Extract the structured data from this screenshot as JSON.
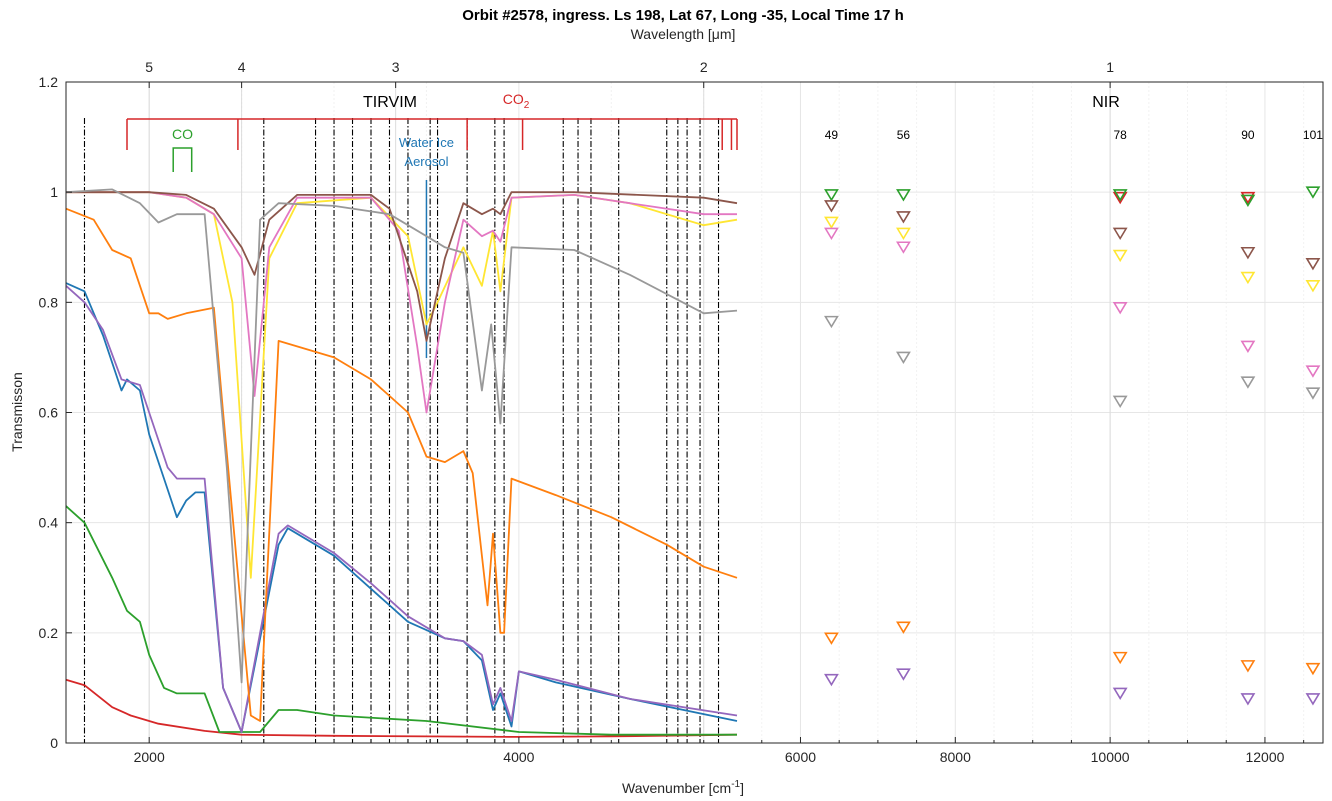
{
  "colors": {
    "co2": "#d62728",
    "co": "#2ca02c",
    "water_ice": "#1f77b4",
    "dashdot": "#000000",
    "grid": "#e6e6e6",
    "axis": "#262626"
  },
  "chart_data": {
    "type": "line",
    "title": "Orbit #2578, ingress. Ls 198, Lat 67, Long -35, Local Time 17 h",
    "top_axis_label": "Wavelength [μm]",
    "xlabel": "Wavenumber [cm",
    "xlabel_sup": "-1",
    "xlabel_close": "]",
    "ylabel": "Transmisson",
    "xlim": [
      1550,
      12750
    ],
    "ylim": [
      0,
      1.2
    ],
    "x_break": 5180,
    "x_scale_segments": [
      {
        "x_min": 1550,
        "x_max": 5180,
        "label": "TIRVIM"
      },
      {
        "x_min": 5180,
        "x_max": 12750,
        "label": "NIR"
      }
    ],
    "x_ticks": [
      {
        "value": 2000,
        "label": "2000"
      },
      {
        "value": 4000,
        "label": "4000"
      },
      {
        "value": 6000,
        "label": "6000"
      },
      {
        "value": 8000,
        "label": "8000"
      },
      {
        "value": 10000,
        "label": "10000"
      },
      {
        "value": 12000,
        "label": "12000"
      }
    ],
    "y_ticks": [
      {
        "value": 0,
        "label": "0"
      },
      {
        "value": 0.2,
        "label": "0.2"
      },
      {
        "value": 0.4,
        "label": "0.4"
      },
      {
        "value": 0.6,
        "label": "0.6"
      },
      {
        "value": 0.8,
        "label": "0.8"
      },
      {
        "value": 1.0,
        "label": "1"
      },
      {
        "value": 1.2,
        "label": "1.2"
      }
    ],
    "top_ticks": [
      {
        "wavelength_um": 5,
        "label": "5"
      },
      {
        "wavelength_um": 4,
        "label": "4"
      },
      {
        "wavelength_um": 3,
        "label": "3"
      },
      {
        "wavelength_um": 2,
        "label": "2"
      },
      {
        "wavelength_um": 1,
        "label": "1"
      }
    ],
    "grid": true,
    "dashdot_lines_x": [
      1650,
      2620,
      2900,
      3000,
      3100,
      3200,
      3300,
      3400,
      3520,
      3560,
      3720,
      3870,
      3920,
      4240,
      4320,
      4390,
      4540,
      4800,
      4860,
      4910,
      4980,
      5080
    ],
    "annotations": {
      "co2": {
        "label": "CO",
        "label_sub": "2",
        "bar_x": [
          1880,
          5180
        ],
        "ticks": [
          1880,
          2480,
          3720,
          4020,
          5100,
          5150,
          5180
        ]
      },
      "co": {
        "label": "CO",
        "bracket_x": [
          2130,
          2230
        ]
      },
      "water_ice": {
        "label_line1": "Water Ice",
        "label_line2": "Aerosol",
        "x": 3500
      }
    },
    "nir_channel_labels": [
      {
        "x": 6400,
        "label": "49"
      },
      {
        "x": 7330,
        "label": "56"
      },
      {
        "x": 10130,
        "label": "78"
      },
      {
        "x": 11780,
        "label": "90"
      },
      {
        "x": 12620,
        "label": "101"
      }
    ],
    "series": [
      {
        "color": "#d62728",
        "points": [
          [
            1550,
            0.115
          ],
          [
            1650,
            0.105
          ],
          [
            1800,
            0.065
          ],
          [
            1900,
            0.05
          ],
          [
            2050,
            0.035
          ],
          [
            2300,
            0.022
          ],
          [
            2500,
            0.015
          ],
          [
            3000,
            0.013
          ],
          [
            3500,
            0.012
          ],
          [
            4000,
            0.011
          ],
          [
            4500,
            0.012
          ],
          [
            5180,
            0.015
          ]
        ],
        "nir": [
          [
            10130,
            0.99
          ],
          [
            11780,
            0.99
          ]
        ]
      },
      {
        "color": "#2ca02c",
        "points": [
          [
            1550,
            0.43
          ],
          [
            1650,
            0.4
          ],
          [
            1800,
            0.3
          ],
          [
            1880,
            0.24
          ],
          [
            1950,
            0.22
          ],
          [
            2000,
            0.16
          ],
          [
            2080,
            0.1
          ],
          [
            2150,
            0.09
          ],
          [
            2250,
            0.09
          ],
          [
            2300,
            0.09
          ],
          [
            2380,
            0.02
          ],
          [
            2600,
            0.02
          ],
          [
            2700,
            0.06
          ],
          [
            2800,
            0.06
          ],
          [
            3000,
            0.05
          ],
          [
            3500,
            0.04
          ],
          [
            4000,
            0.02
          ],
          [
            4500,
            0.015
          ],
          [
            5180,
            0.015
          ]
        ],
        "nir": [
          [
            6400,
            0.995
          ],
          [
            7330,
            0.995
          ],
          [
            10130,
            0.995
          ],
          [
            11780,
            0.985
          ],
          [
            12620,
            1.0
          ]
        ]
      },
      {
        "color": "#1f77b4",
        "points": [
          [
            1550,
            0.835
          ],
          [
            1650,
            0.82
          ],
          [
            1750,
            0.74
          ],
          [
            1850,
            0.64
          ],
          [
            1880,
            0.66
          ],
          [
            1950,
            0.64
          ],
          [
            2000,
            0.56
          ],
          [
            2100,
            0.46
          ],
          [
            2150,
            0.41
          ],
          [
            2200,
            0.44
          ],
          [
            2250,
            0.455
          ],
          [
            2300,
            0.455
          ],
          [
            2400,
            0.1
          ],
          [
            2500,
            0.02
          ],
          [
            2700,
            0.36
          ],
          [
            2750,
            0.39
          ],
          [
            3000,
            0.34
          ],
          [
            3200,
            0.28
          ],
          [
            3400,
            0.22
          ],
          [
            3600,
            0.19
          ],
          [
            3700,
            0.185
          ],
          [
            3800,
            0.15
          ],
          [
            3860,
            0.06
          ],
          [
            3900,
            0.09
          ],
          [
            3960,
            0.03
          ],
          [
            4000,
            0.13
          ],
          [
            4200,
            0.11
          ],
          [
            4600,
            0.08
          ],
          [
            5180,
            0.04
          ]
        ],
        "nir": []
      },
      {
        "color": "#9467bd",
        "points": [
          [
            1550,
            0.83
          ],
          [
            1650,
            0.8
          ],
          [
            1750,
            0.75
          ],
          [
            1850,
            0.66
          ],
          [
            1950,
            0.65
          ],
          [
            2050,
            0.55
          ],
          [
            2100,
            0.5
          ],
          [
            2150,
            0.48
          ],
          [
            2250,
            0.48
          ],
          [
            2300,
            0.48
          ],
          [
            2400,
            0.1
          ],
          [
            2500,
            0.02
          ],
          [
            2700,
            0.38
          ],
          [
            2750,
            0.395
          ],
          [
            3000,
            0.345
          ],
          [
            3200,
            0.29
          ],
          [
            3400,
            0.23
          ],
          [
            3600,
            0.19
          ],
          [
            3700,
            0.185
          ],
          [
            3800,
            0.16
          ],
          [
            3860,
            0.07
          ],
          [
            3900,
            0.1
          ],
          [
            3960,
            0.04
          ],
          [
            4000,
            0.13
          ],
          [
            4200,
            0.115
          ],
          [
            4600,
            0.08
          ],
          [
            5180,
            0.05
          ]
        ],
        "nir": [
          [
            6400,
            0.115
          ],
          [
            7330,
            0.125
          ],
          [
            10130,
            0.09
          ],
          [
            11780,
            0.08
          ],
          [
            12620,
            0.08
          ]
        ]
      },
      {
        "color": "#ff7f0e",
        "points": [
          [
            1550,
            0.97
          ],
          [
            1700,
            0.95
          ],
          [
            1800,
            0.895
          ],
          [
            1900,
            0.88
          ],
          [
            2000,
            0.78
          ],
          [
            2050,
            0.78
          ],
          [
            2100,
            0.77
          ],
          [
            2200,
            0.78
          ],
          [
            2350,
            0.79
          ],
          [
            2400,
            0.6
          ],
          [
            2550,
            0.05
          ],
          [
            2600,
            0.04
          ],
          [
            2700,
            0.73
          ],
          [
            2800,
            0.72
          ],
          [
            3000,
            0.7
          ],
          [
            3200,
            0.66
          ],
          [
            3400,
            0.6
          ],
          [
            3500,
            0.52
          ],
          [
            3600,
            0.51
          ],
          [
            3700,
            0.53
          ],
          [
            3750,
            0.49
          ],
          [
            3800,
            0.34
          ],
          [
            3830,
            0.25
          ],
          [
            3860,
            0.38
          ],
          [
            3900,
            0.2
          ],
          [
            3920,
            0.2
          ],
          [
            3960,
            0.48
          ],
          [
            4200,
            0.45
          ],
          [
            4500,
            0.41
          ],
          [
            4800,
            0.36
          ],
          [
            5000,
            0.32
          ],
          [
            5180,
            0.3
          ]
        ],
        "nir": [
          [
            6400,
            0.19
          ],
          [
            7330,
            0.21
          ],
          [
            10130,
            0.155
          ],
          [
            11780,
            0.14
          ],
          [
            12620,
            0.135
          ]
        ]
      },
      {
        "color": "#ffe633",
        "points": [
          [
            1550,
            1.0
          ],
          [
            2000,
            1.0
          ],
          [
            2200,
            0.99
          ],
          [
            2350,
            0.96
          ],
          [
            2450,
            0.8
          ],
          [
            2550,
            0.3
          ],
          [
            2650,
            0.88
          ],
          [
            2800,
            0.98
          ],
          [
            3200,
            0.99
          ],
          [
            3400,
            0.92
          ],
          [
            3500,
            0.76
          ],
          [
            3560,
            0.8
          ],
          [
            3700,
            0.9
          ],
          [
            3800,
            0.83
          ],
          [
            3860,
            0.93
          ],
          [
            3900,
            0.82
          ],
          [
            3960,
            0.99
          ],
          [
            4300,
            0.995
          ],
          [
            4600,
            0.98
          ],
          [
            5000,
            0.94
          ],
          [
            5180,
            0.95
          ]
        ],
        "nir": [
          [
            6400,
            0.945
          ],
          [
            7330,
            0.925
          ],
          [
            10130,
            0.885
          ],
          [
            11780,
            0.845
          ],
          [
            12620,
            0.83
          ]
        ]
      },
      {
        "color": "#e377c2",
        "points": [
          [
            1550,
            1.0
          ],
          [
            2000,
            1.0
          ],
          [
            2200,
            0.99
          ],
          [
            2350,
            0.96
          ],
          [
            2500,
            0.88
          ],
          [
            2570,
            0.63
          ],
          [
            2650,
            0.9
          ],
          [
            2800,
            0.99
          ],
          [
            3200,
            0.99
          ],
          [
            3350,
            0.93
          ],
          [
            3450,
            0.72
          ],
          [
            3500,
            0.6
          ],
          [
            3600,
            0.8
          ],
          [
            3700,
            0.95
          ],
          [
            3800,
            0.92
          ],
          [
            3860,
            0.93
          ],
          [
            3900,
            0.91
          ],
          [
            3960,
            0.99
          ],
          [
            4300,
            0.995
          ],
          [
            4600,
            0.98
          ],
          [
            5000,
            0.96
          ],
          [
            5180,
            0.96
          ]
        ],
        "nir": [
          [
            6400,
            0.925
          ],
          [
            7330,
            0.9
          ],
          [
            10130,
            0.79
          ],
          [
            11780,
            0.72
          ],
          [
            12620,
            0.675
          ]
        ]
      },
      {
        "color": "#8c564b",
        "points": [
          [
            1550,
            1.0
          ],
          [
            2000,
            1.0
          ],
          [
            2200,
            0.995
          ],
          [
            2350,
            0.97
          ],
          [
            2500,
            0.9
          ],
          [
            2570,
            0.85
          ],
          [
            2650,
            0.95
          ],
          [
            2800,
            0.995
          ],
          [
            3200,
            0.995
          ],
          [
            3300,
            0.97
          ],
          [
            3450,
            0.82
          ],
          [
            3500,
            0.73
          ],
          [
            3600,
            0.88
          ],
          [
            3700,
            0.98
          ],
          [
            3800,
            0.96
          ],
          [
            3860,
            0.97
          ],
          [
            3900,
            0.96
          ],
          [
            3960,
            1.0
          ],
          [
            4300,
            1.0
          ],
          [
            5000,
            0.99
          ],
          [
            5180,
            0.98
          ]
        ],
        "nir": [
          [
            6400,
            0.975
          ],
          [
            7330,
            0.955
          ],
          [
            10130,
            0.925
          ],
          [
            11780,
            0.89
          ],
          [
            12620,
            0.87
          ]
        ]
      },
      {
        "color": "#999999",
        "points": [
          [
            1550,
            1.0
          ],
          [
            1800,
            1.005
          ],
          [
            1950,
            0.98
          ],
          [
            2050,
            0.945
          ],
          [
            2150,
            0.96
          ],
          [
            2300,
            0.96
          ],
          [
            2420,
            0.5
          ],
          [
            2500,
            0.11
          ],
          [
            2600,
            0.95
          ],
          [
            2700,
            0.98
          ],
          [
            3000,
            0.975
          ],
          [
            3300,
            0.96
          ],
          [
            3500,
            0.92
          ],
          [
            3600,
            0.9
          ],
          [
            3700,
            0.89
          ],
          [
            3800,
            0.64
          ],
          [
            3850,
            0.76
          ],
          [
            3900,
            0.58
          ],
          [
            3960,
            0.9
          ],
          [
            4300,
            0.895
          ],
          [
            4600,
            0.85
          ],
          [
            5000,
            0.78
          ],
          [
            5180,
            0.785
          ]
        ],
        "nir": [
          [
            6400,
            0.765
          ],
          [
            7330,
            0.7
          ],
          [
            10130,
            0.62
          ],
          [
            11780,
            0.655
          ],
          [
            12620,
            0.635
          ]
        ]
      }
    ]
  }
}
